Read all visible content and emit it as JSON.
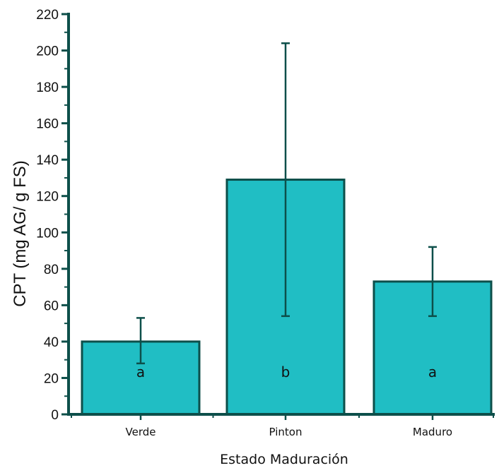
{
  "chart_data": {
    "type": "bar",
    "title": "",
    "xlabel": "Estado Maduración",
    "ylabel": "CPT (mg AG/ g FS)",
    "categories": [
      "Verde",
      "Pinton",
      "Maduro"
    ],
    "values": [
      40,
      129,
      73
    ],
    "error_low": [
      28,
      54,
      54
    ],
    "error_high": [
      53,
      204,
      92
    ],
    "significance_labels": [
      "a",
      "b",
      "a"
    ],
    "ylim": [
      0,
      220
    ],
    "yticks": [
      0,
      20,
      40,
      60,
      80,
      100,
      120,
      140,
      160,
      180,
      200,
      220
    ],
    "grid": false,
    "legend": "none"
  },
  "colors": {
    "bar_fill": "#20bec4",
    "bar_stroke": "#0d4f4a",
    "axis": "#0d4f4a",
    "error_bar": "#0d4f4a"
  }
}
